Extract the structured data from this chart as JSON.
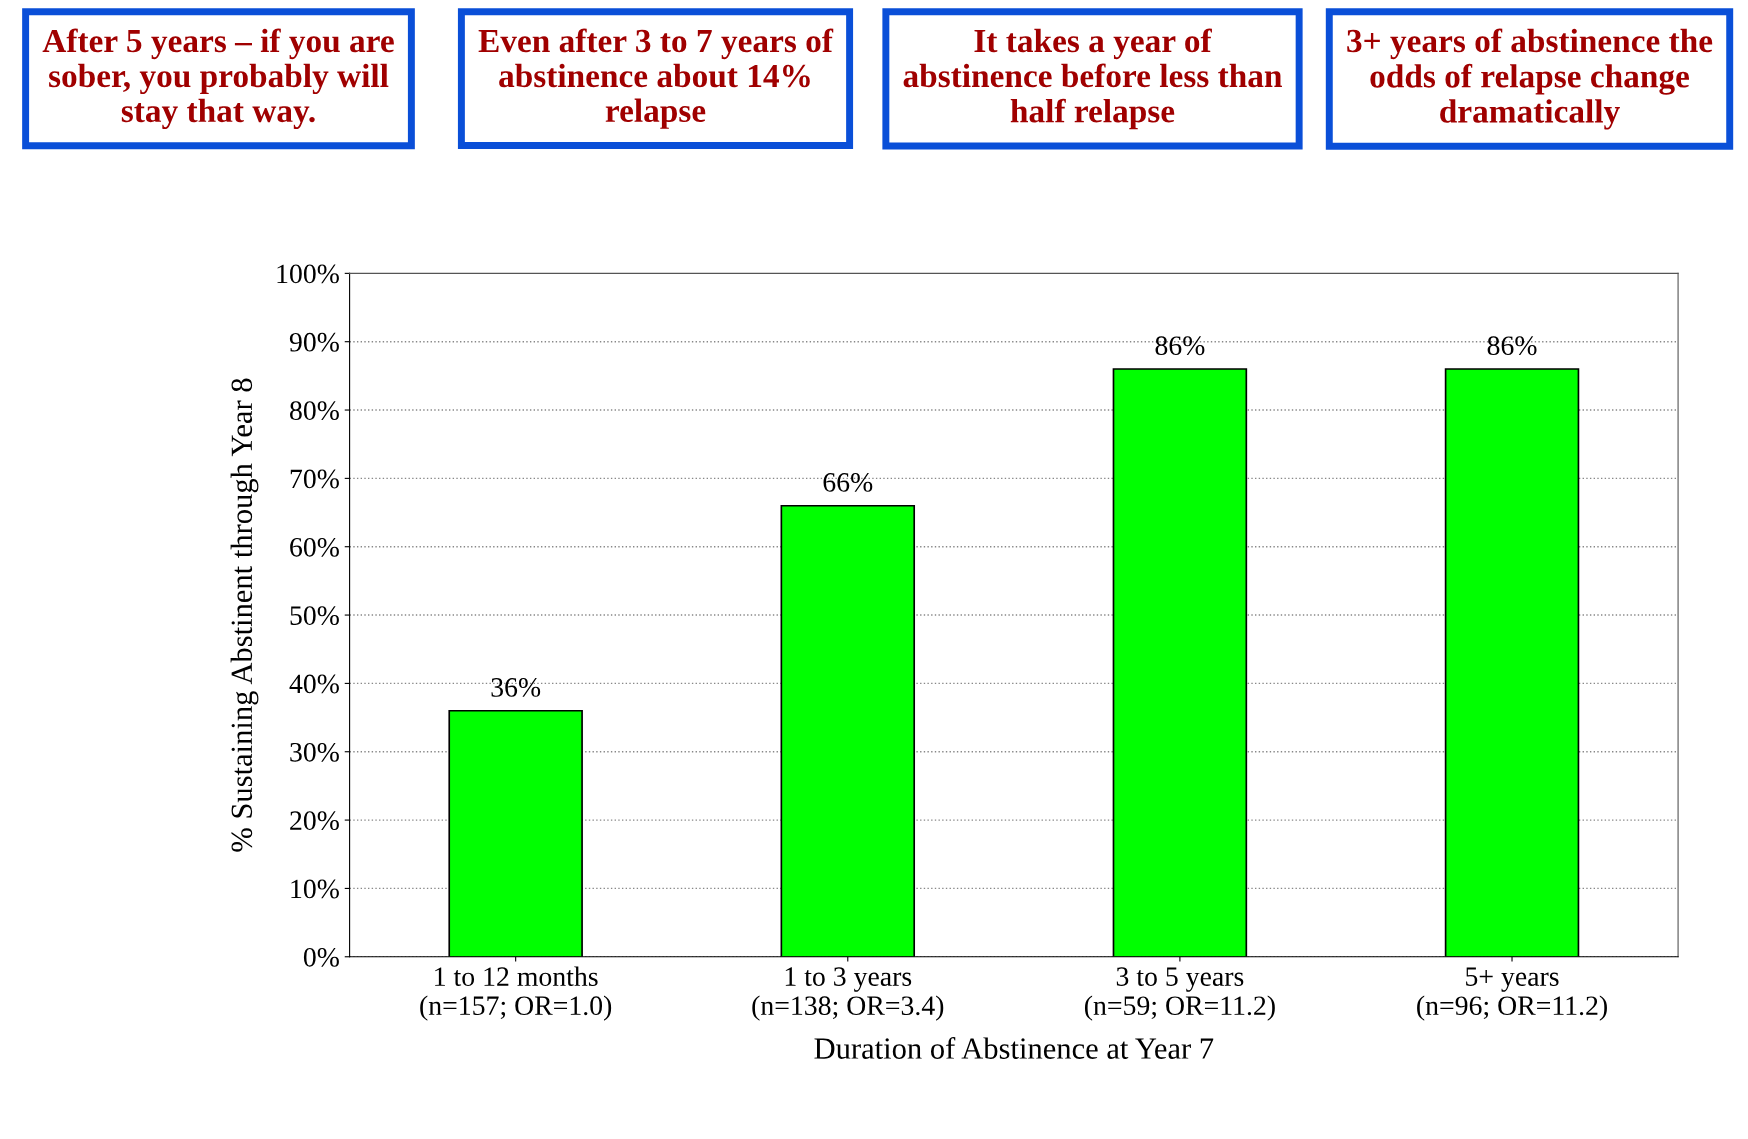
{
  "chart_data": {
    "type": "bar",
    "xlabel": "Duration of Abstinence at Year 7",
    "ylabel": "% Sustaining Abstinent through Year 8",
    "categories": [
      "1 to 12 months\n(n=157; OR=1.0)",
      "1 to 3 years\n(n=138; OR=3.4)",
      "3 to 5 years\n(n=59; OR=11.2)",
      "5+ years\n(n=96; OR=11.2)"
    ],
    "values": [
      36,
      66,
      86,
      86
    ],
    "value_labels": [
      "36%",
      "66%",
      "86%",
      "86%"
    ],
    "color": "#00ff00",
    "ylim": [
      0,
      100
    ],
    "yticks": [
      {
        "value": 0,
        "label": "0%"
      },
      {
        "value": 10,
        "label": "10%"
      },
      {
        "value": 20,
        "label": "20%"
      },
      {
        "value": 30,
        "label": "30%"
      },
      {
        "value": 40,
        "label": "40%"
      },
      {
        "value": 50,
        "label": "50%"
      },
      {
        "value": 60,
        "label": "60%"
      },
      {
        "value": 70,
        "label": "70%"
      },
      {
        "value": 80,
        "label": "80%"
      },
      {
        "value": 90,
        "label": "90%"
      },
      {
        "value": 100,
        "label": "100%"
      }
    ],
    "grid": "y",
    "annotations": [
      "After 5 years – if you are sober, you probably will stay that way.",
      "Even after 3 to 7 years of abstinence about 14% relapse",
      "It takes a year of abstinence before less than half relapse",
      "3+ years of abstinence the odds of relapse change dramatically"
    ]
  }
}
